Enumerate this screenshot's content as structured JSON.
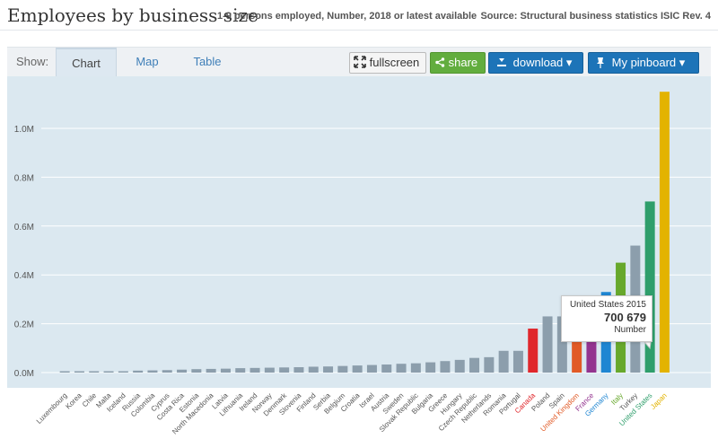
{
  "header": {
    "title": "Employees by business size",
    "subtitle": "1-9 persons employed, Number, 2018 or latest available",
    "source": "Source: Structural business statistics ISIC Rev. 4"
  },
  "toolbar": {
    "show_label": "Show:",
    "tabs": [
      {
        "label": "Chart"
      },
      {
        "label": "Map"
      },
      {
        "label": "Table"
      }
    ],
    "fullscreen_label": "fullscreen",
    "share_label": "share",
    "download_label": "download ▾",
    "pinboard_label": "My pinboard ▾"
  },
  "tooltip": {
    "country": "United States 2015",
    "value": "700 679",
    "unit": "Number"
  },
  "colors": {
    "default_bar": "#8c9eac",
    "highlight": {
      "Canada": "#e0272c",
      "United Kingdom": "#e15a26",
      "France": "#93348f",
      "Germany": "#1f86d2",
      "Italy": "#67a82c",
      "United States": "#2e9e6b",
      "Japan": "#e3b300"
    }
  },
  "chart_data": {
    "type": "bar",
    "categories": [
      "Luxembourg",
      "Korea",
      "Chile",
      "Malta",
      "Iceland",
      "Russia",
      "Colombia",
      "Cyprus",
      "Costa Rica",
      "Estonia",
      "North Macedonia",
      "Latvia",
      "Lithuania",
      "Ireland",
      "Norway",
      "Denmark",
      "Slovenia",
      "Finland",
      "Serbia",
      "Belgium",
      "Croatia",
      "Israel",
      "Austria",
      "Sweden",
      "Slovak Republic",
      "Bulgaria",
      "Greece",
      "Hungary",
      "Czech Republic",
      "Netherlands",
      "Romania",
      "Portugal",
      "Canada",
      "Poland",
      "Spain",
      "United Kingdom",
      "France",
      "Germany",
      "Italy",
      "Turkey",
      "United States",
      "Japan"
    ],
    "values": [
      3000,
      4000,
      4000,
      5000,
      5000,
      8000,
      9000,
      10000,
      12000,
      14000,
      15000,
      16000,
      18000,
      19000,
      20000,
      21000,
      22000,
      24000,
      25000,
      27000,
      29000,
      31000,
      33000,
      36000,
      38000,
      42000,
      47000,
      52000,
      60000,
      63000,
      89000,
      89000,
      180000,
      230000,
      230000,
      230000,
      230000,
      330000,
      450000,
      520000,
      700679,
      1150000
    ],
    "y_ticks": [
      "0.0M",
      "0.2M",
      "0.4M",
      "0.6M",
      "0.8M",
      "1.0M"
    ],
    "ylim": [
      0,
      1200000
    ],
    "grid": true
  }
}
